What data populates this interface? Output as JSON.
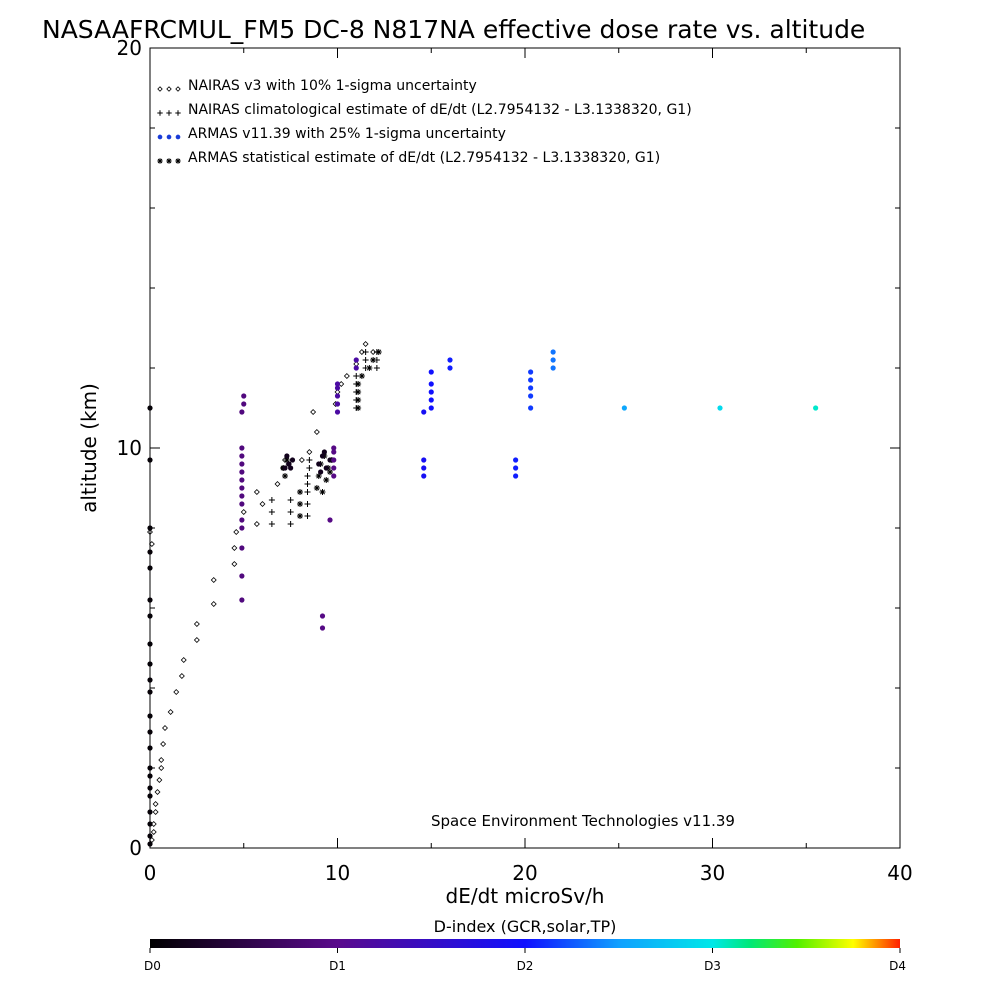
{
  "chart_data": {
    "type": "scatter",
    "title": "NASAAFRCMUL_FM5 DC-8   N817NA effective dose rate vs. altitude",
    "xlabel": "dE/dt microSv/h",
    "ylabel": "altitude (km)",
    "xlim": [
      0,
      40
    ],
    "ylim": [
      0,
      20
    ],
    "x_ticks": [
      {
        "value": 0,
        "label": "0"
      },
      {
        "value": 10,
        "label": "10"
      },
      {
        "value": 20,
        "label": "20"
      },
      {
        "value": 30,
        "label": "30"
      },
      {
        "value": 40,
        "label": "40"
      }
    ],
    "y_ticks": [
      {
        "value": 0,
        "label": "0"
      },
      {
        "value": 10,
        "label": "10"
      },
      {
        "value": 20,
        "label": "20"
      }
    ],
    "grid": false,
    "legend_position": "top-left",
    "annotation": "Space Environment Technologies v11.39",
    "colorbar": {
      "title": "D-index (GCR,solar,TP)",
      "ticks": [
        {
          "value": 0,
          "label": "D0"
        },
        {
          "value": 1,
          "label": "D1"
        },
        {
          "value": 2,
          "label": "D2"
        },
        {
          "value": 3,
          "label": "D3"
        },
        {
          "value": 4,
          "label": "D4"
        }
      ],
      "stops": [
        {
          "d": 0,
          "color": "#000000"
        },
        {
          "d": 1,
          "color": "#5a0a8c"
        },
        {
          "d": 2,
          "color": "#1010ff"
        },
        {
          "d": 2.5,
          "color": "#10a0ff"
        },
        {
          "d": 3,
          "color": "#00e8e8"
        },
        {
          "d": 3.2,
          "color": "#00e878"
        },
        {
          "d": 3.45,
          "color": "#50f000"
        },
        {
          "d": 3.75,
          "color": "#ffff00"
        },
        {
          "d": 4,
          "color": "#ff2000"
        }
      ]
    },
    "series": [
      {
        "name": "NAIRAS v3 with 10% 1-sigma uncertainty",
        "marker": "diamond",
        "points": [
          [
            0.1,
            0.2
          ],
          [
            0.2,
            0.4
          ],
          [
            0.2,
            0.6
          ],
          [
            0.3,
            0.9
          ],
          [
            0.3,
            1.1
          ],
          [
            0.4,
            1.4
          ],
          [
            0.5,
            1.7
          ],
          [
            0.6,
            2.0
          ],
          [
            0.6,
            2.2
          ],
          [
            0.7,
            2.6
          ],
          [
            0.8,
            3.0
          ],
          [
            1.1,
            3.4
          ],
          [
            1.4,
            3.9
          ],
          [
            1.7,
            4.3
          ],
          [
            1.8,
            4.7
          ],
          [
            2.5,
            5.2
          ],
          [
            2.5,
            5.6
          ],
          [
            3.4,
            6.1
          ],
          [
            3.4,
            6.7
          ],
          [
            4.5,
            7.1
          ],
          [
            4.5,
            7.5
          ],
          [
            4.6,
            7.9
          ],
          [
            5.0,
            8.4
          ],
          [
            5.7,
            8.9
          ],
          [
            6.0,
            8.6
          ],
          [
            5.7,
            8.1
          ],
          [
            6.8,
            9.1
          ],
          [
            7.1,
            9.5
          ],
          [
            7.2,
            9.7
          ],
          [
            8.1,
            9.7
          ],
          [
            8.5,
            9.9
          ],
          [
            8.9,
            10.4
          ],
          [
            8.7,
            10.9
          ],
          [
            9.9,
            11.1
          ],
          [
            10.0,
            11.4
          ],
          [
            10.2,
            11.6
          ],
          [
            10.5,
            11.8
          ],
          [
            11.0,
            12.1
          ],
          [
            11.3,
            12.4
          ],
          [
            11.5,
            12.6
          ],
          [
            11.9,
            12.4
          ],
          [
            0.0,
            7.9
          ],
          [
            0.1,
            7.6
          ]
        ]
      },
      {
        "name": "NAIRAS climatological estimate of dE/dt (L2.7954132 - L3.1338320, G1)",
        "marker": "plus",
        "points": [
          [
            6.5,
            8.7
          ],
          [
            6.5,
            8.4
          ],
          [
            6.5,
            8.1
          ],
          [
            7.5,
            8.7
          ],
          [
            7.5,
            8.4
          ],
          [
            7.5,
            8.1
          ],
          [
            8.4,
            9.3
          ],
          [
            8.4,
            9.1
          ],
          [
            8.4,
            8.9
          ],
          [
            8.4,
            8.6
          ],
          [
            8.4,
            8.3
          ],
          [
            8.5,
            9.7
          ],
          [
            8.5,
            9.5
          ],
          [
            11.0,
            11.0
          ],
          [
            11.0,
            11.2
          ],
          [
            11.0,
            11.4
          ],
          [
            11.0,
            11.6
          ],
          [
            11.0,
            11.8
          ],
          [
            11.5,
            12.0
          ],
          [
            11.5,
            12.2
          ],
          [
            11.5,
            12.4
          ],
          [
            12.1,
            12.2
          ],
          [
            12.1,
            12.4
          ],
          [
            12.1,
            12.0
          ]
        ]
      },
      {
        "name": "ARMAS v11.39 with 25% 1-sigma uncertainty",
        "marker": "dot",
        "points": [
          [
            0.0,
            11.0,
            0.05
          ],
          [
            0.0,
            9.7,
            0.05
          ],
          [
            0.0,
            8.0,
            0.05
          ],
          [
            0.0,
            7.4,
            0.05
          ],
          [
            0.0,
            7.0,
            0.05
          ],
          [
            0.0,
            6.2,
            0.05
          ],
          [
            0.0,
            5.8,
            0.05
          ],
          [
            0.0,
            5.1,
            0.05
          ],
          [
            0.0,
            4.6,
            0.05
          ],
          [
            0.0,
            4.2,
            0.05
          ],
          [
            0.0,
            3.9,
            0.05
          ],
          [
            0.0,
            3.3,
            0.05
          ],
          [
            0.0,
            2.9,
            0.05
          ],
          [
            0.0,
            2.5,
            0.05
          ],
          [
            0.0,
            2.0,
            0.05
          ],
          [
            0.0,
            1.8,
            0.05
          ],
          [
            0.0,
            1.5,
            0.05
          ],
          [
            0.0,
            1.3,
            0.05
          ],
          [
            0.0,
            0.9,
            0.05
          ],
          [
            0.0,
            0.6,
            0.05
          ],
          [
            0.0,
            0.3,
            0.05
          ],
          [
            0.0,
            0.1,
            0.05
          ],
          [
            4.9,
            6.2,
            0.9
          ],
          [
            4.9,
            6.8,
            0.9
          ],
          [
            4.9,
            7.5,
            0.9
          ],
          [
            4.9,
            8.0,
            0.9
          ],
          [
            4.9,
            8.2,
            0.9
          ],
          [
            4.9,
            8.6,
            0.9
          ],
          [
            4.9,
            8.8,
            0.9
          ],
          [
            4.9,
            9.0,
            0.9
          ],
          [
            4.9,
            9.2,
            0.9
          ],
          [
            4.9,
            9.4,
            0.9
          ],
          [
            4.9,
            9.6,
            0.9
          ],
          [
            4.9,
            9.8,
            0.9
          ],
          [
            4.9,
            10.0,
            0.9
          ],
          [
            4.9,
            10.9,
            0.9
          ],
          [
            5.0,
            11.1,
            0.9
          ],
          [
            5.0,
            11.3,
            0.9
          ],
          [
            7.2,
            9.5,
            0.2
          ],
          [
            7.4,
            9.6,
            0.2
          ],
          [
            7.6,
            9.7,
            0.2
          ],
          [
            7.3,
            9.8,
            0.2
          ],
          [
            7.5,
            9.5,
            0.2
          ],
          [
            9.0,
            9.6,
            0.2
          ],
          [
            9.2,
            9.8,
            0.2
          ],
          [
            9.4,
            9.5,
            0.2
          ],
          [
            9.6,
            9.7,
            0.2
          ],
          [
            9.3,
            9.9,
            0.2
          ],
          [
            9.1,
            9.4,
            0.2
          ],
          [
            9.2,
            5.5,
            0.95
          ],
          [
            9.2,
            5.8,
            0.95
          ],
          [
            9.6,
            8.2,
            0.95
          ],
          [
            9.8,
            9.3,
            0.95
          ],
          [
            9.8,
            9.5,
            0.95
          ],
          [
            9.8,
            9.7,
            0.95
          ],
          [
            9.8,
            9.9,
            0.95
          ],
          [
            9.8,
            10.0,
            0.95
          ],
          [
            10.0,
            10.9,
            1.2
          ],
          [
            10.0,
            11.1,
            1.2
          ],
          [
            10.0,
            11.3,
            1.2
          ],
          [
            10.0,
            11.5,
            1.2
          ],
          [
            10.0,
            11.6,
            1.2
          ],
          [
            11.0,
            12.0,
            1.2
          ],
          [
            11.0,
            12.2,
            1.2
          ],
          [
            14.6,
            9.3,
            1.9
          ],
          [
            14.6,
            9.5,
            1.9
          ],
          [
            14.6,
            9.7,
            1.9
          ],
          [
            14.6,
            10.9,
            1.9
          ],
          [
            15.0,
            11.0,
            2.0
          ],
          [
            15.0,
            11.2,
            2.0
          ],
          [
            15.0,
            11.4,
            2.0
          ],
          [
            15.0,
            11.6,
            2.0
          ],
          [
            15.0,
            11.9,
            2.0
          ],
          [
            16.0,
            12.0,
            2.05
          ],
          [
            16.0,
            12.2,
            2.05
          ],
          [
            19.5,
            9.3,
            2.05
          ],
          [
            19.5,
            9.5,
            2.05
          ],
          [
            19.5,
            9.7,
            2.05
          ],
          [
            20.3,
            11.0,
            2.15
          ],
          [
            20.3,
            11.3,
            2.15
          ],
          [
            20.3,
            11.5,
            2.15
          ],
          [
            20.3,
            11.7,
            2.15
          ],
          [
            20.3,
            11.9,
            2.15
          ],
          [
            21.5,
            12.0,
            2.35
          ],
          [
            21.5,
            12.2,
            2.35
          ],
          [
            21.5,
            12.4,
            2.35
          ],
          [
            25.3,
            11.0,
            2.55
          ],
          [
            30.4,
            11.0,
            2.9
          ],
          [
            35.5,
            11.0,
            3.05
          ]
        ]
      },
      {
        "name": "ARMAS statistical estimate of dE/dt (L2.7954132 - L3.1338320, G1)",
        "marker": "asterisk",
        "points": [
          [
            7.1,
            9.5
          ],
          [
            7.3,
            9.7
          ],
          [
            7.4,
            9.6
          ],
          [
            7.2,
            9.3
          ],
          [
            8.0,
            8.6
          ],
          [
            8.0,
            8.3
          ],
          [
            8.0,
            8.9
          ],
          [
            8.9,
            9.0
          ],
          [
            9.0,
            9.3
          ],
          [
            9.1,
            9.6
          ],
          [
            9.3,
            9.8
          ],
          [
            9.5,
            9.5
          ],
          [
            9.7,
            9.7
          ],
          [
            9.6,
            9.4
          ],
          [
            9.4,
            9.2
          ],
          [
            9.2,
            8.9
          ],
          [
            11.1,
            11.0
          ],
          [
            11.1,
            11.2
          ],
          [
            11.1,
            11.4
          ],
          [
            11.1,
            11.6
          ],
          [
            11.3,
            11.8
          ],
          [
            11.7,
            12.0
          ],
          [
            11.9,
            12.2
          ],
          [
            12.2,
            12.4
          ]
        ]
      }
    ]
  }
}
